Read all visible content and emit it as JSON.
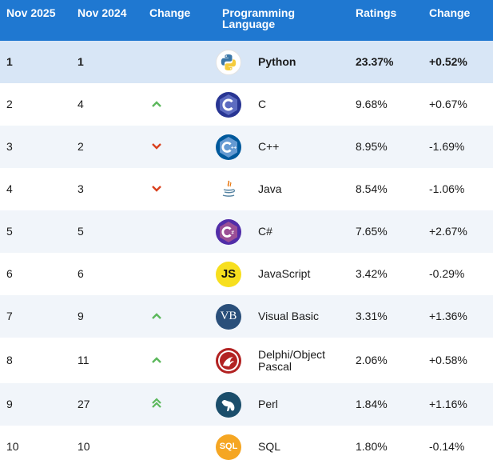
{
  "headers": {
    "col1": "Nov 2025",
    "col2": "Nov 2024",
    "col3": "Change",
    "col4": "Programming Language",
    "col5": "Ratings",
    "col6": "Change"
  },
  "colors": {
    "header_bg": "#1f78d1",
    "up": "#5cb85c",
    "down": "#d9411e"
  },
  "rows": [
    {
      "rank_2025": "1",
      "rank_2024": "1",
      "trend": "none",
      "icon": "python-logo-icon",
      "language": "Python",
      "rating": "23.37%",
      "change": "+0.52%"
    },
    {
      "rank_2025": "2",
      "rank_2024": "4",
      "trend": "up",
      "icon": "c-logo-icon",
      "language": "C",
      "rating": "9.68%",
      "change": "+0.67%"
    },
    {
      "rank_2025": "3",
      "rank_2024": "2",
      "trend": "down",
      "icon": "cpp-logo-icon",
      "language": "C++",
      "rating": "8.95%",
      "change": "-1.69%"
    },
    {
      "rank_2025": "4",
      "rank_2024": "3",
      "trend": "down",
      "icon": "java-logo-icon",
      "language": "Java",
      "rating": "8.54%",
      "change": "-1.06%"
    },
    {
      "rank_2025": "5",
      "rank_2024": "5",
      "trend": "none",
      "icon": "csharp-logo-icon",
      "language": "C#",
      "rating": "7.65%",
      "change": "+2.67%"
    },
    {
      "rank_2025": "6",
      "rank_2024": "6",
      "trend": "none",
      "icon": "javascript-logo-icon",
      "language": "JavaScript",
      "rating": "3.42%",
      "change": "-0.29%"
    },
    {
      "rank_2025": "7",
      "rank_2024": "9",
      "trend": "up",
      "icon": "visual-basic-logo-icon",
      "language": "Visual Basic",
      "rating": "3.31%",
      "change": "+1.36%"
    },
    {
      "rank_2025": "8",
      "rank_2024": "11",
      "trend": "up",
      "icon": "delphi-logo-icon",
      "language": "Delphi/Object Pascal",
      "rating": "2.06%",
      "change": "+0.58%"
    },
    {
      "rank_2025": "9",
      "rank_2024": "27",
      "trend": "double-up",
      "icon": "perl-logo-icon",
      "language": "Perl",
      "rating": "1.84%",
      "change": "+1.16%"
    },
    {
      "rank_2025": "10",
      "rank_2024": "10",
      "trend": "none",
      "icon": "sql-logo-icon",
      "language": "SQL",
      "rating": "1.80%",
      "change": "-0.14%"
    }
  ],
  "logo_text": {
    "javascript": "JS",
    "visual_basic": "VB",
    "sql": "SQL"
  }
}
